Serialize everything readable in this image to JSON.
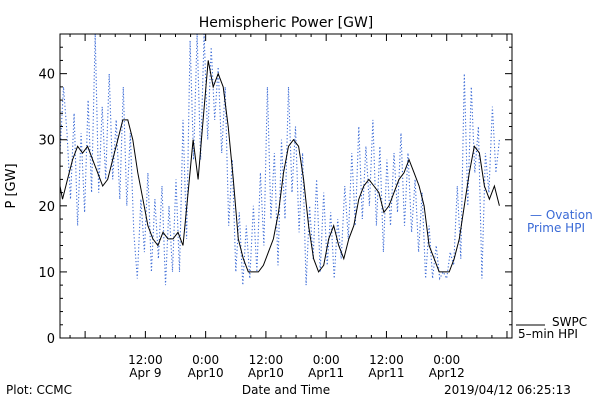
{
  "chart_data": {
    "type": "line",
    "title": "Hemispheric Power [GW]",
    "ylabel": "P [GW]",
    "xlabel": "Date and Time",
    "ylim": [
      0,
      46
    ],
    "yticks": [
      0,
      10,
      20,
      30,
      40
    ],
    "xlim_hours": [
      -5,
      85
    ],
    "xtick_labels": [
      {
        "hour": 12,
        "time": "12:00",
        "date": "Apr 9"
      },
      {
        "hour": 24,
        "time": "0:00",
        "date": "Apr10"
      },
      {
        "hour": 36,
        "time": "12:00",
        "date": "Apr10"
      },
      {
        "hour": 48,
        "time": "0:00",
        "date": "Apr11"
      },
      {
        "hour": 60,
        "time": "12:00",
        "date": "Apr11"
      },
      {
        "hour": 72,
        "time": "0:00",
        "date": "Apr12"
      }
    ],
    "grid": false,
    "series": [
      {
        "name": "SWPC 5-min HPI",
        "legend_label_1": "SWPC",
        "legend_label_2": "5–min HPI",
        "color": "#000000",
        "style": "solid",
        "points": [
          [
            -5,
            23
          ],
          [
            -4.5,
            21
          ],
          [
            -3.5,
            24
          ],
          [
            -2.5,
            27
          ],
          [
            -1.5,
            29
          ],
          [
            -0.5,
            28
          ],
          [
            0.5,
            29
          ],
          [
            1.5,
            27
          ],
          [
            2.5,
            25
          ],
          [
            3.5,
            23
          ],
          [
            4.5,
            24
          ],
          [
            5.5,
            27
          ],
          [
            6.5,
            30
          ],
          [
            7.5,
            33
          ],
          [
            8.5,
            33
          ],
          [
            9.5,
            30
          ],
          [
            10.5,
            25
          ],
          [
            11.5,
            21
          ],
          [
            12.5,
            17
          ],
          [
            13.5,
            15
          ],
          [
            14.5,
            14
          ],
          [
            15.5,
            16
          ],
          [
            16.5,
            15
          ],
          [
            17.5,
            15
          ],
          [
            18.5,
            16
          ],
          [
            19.5,
            14
          ],
          [
            20.5,
            22
          ],
          [
            21.5,
            30
          ],
          [
            22.5,
            24
          ],
          [
            23.5,
            33
          ],
          [
            24.5,
            42
          ],
          [
            25.5,
            38
          ],
          [
            26.5,
            40
          ],
          [
            27.5,
            38
          ],
          [
            28.5,
            32
          ],
          [
            29.5,
            24
          ],
          [
            30.5,
            15
          ],
          [
            31.5,
            12
          ],
          [
            32.5,
            10
          ],
          [
            33.5,
            10
          ],
          [
            34.5,
            10
          ],
          [
            35.5,
            11
          ],
          [
            36.5,
            13
          ],
          [
            37.5,
            15
          ],
          [
            38.5,
            19
          ],
          [
            39.5,
            25
          ],
          [
            40.5,
            29
          ],
          [
            41.5,
            30
          ],
          [
            42.5,
            29
          ],
          [
            43.5,
            24
          ],
          [
            44.5,
            17
          ],
          [
            45.5,
            12
          ],
          [
            46.5,
            10
          ],
          [
            47.5,
            11
          ],
          [
            48.5,
            15
          ],
          [
            49.5,
            17
          ],
          [
            50.5,
            14
          ],
          [
            51.5,
            12
          ],
          [
            52.5,
            15
          ],
          [
            53.5,
            17
          ],
          [
            54.5,
            21
          ],
          [
            55.5,
            23
          ],
          [
            56.5,
            24
          ],
          [
            57.5,
            23
          ],
          [
            58.5,
            22
          ],
          [
            59.5,
            19
          ],
          [
            60.5,
            20
          ],
          [
            61.5,
            22
          ],
          [
            62.5,
            24
          ],
          [
            63.5,
            25
          ],
          [
            64.5,
            27
          ],
          [
            65.5,
            25
          ],
          [
            66.5,
            23
          ],
          [
            67.5,
            20
          ],
          [
            68.5,
            14
          ],
          [
            69.5,
            12
          ],
          [
            70.5,
            10
          ],
          [
            71.5,
            10
          ],
          [
            72.5,
            10
          ],
          [
            73.5,
            12
          ],
          [
            74.5,
            15
          ],
          [
            75.5,
            20
          ],
          [
            76.5,
            25
          ],
          [
            77.5,
            29
          ],
          [
            78.5,
            28
          ],
          [
            79.5,
            23
          ],
          [
            80.5,
            21
          ],
          [
            81.5,
            23
          ],
          [
            82.5,
            20
          ]
        ]
      },
      {
        "name": "Ovation Prime HPI",
        "legend_label_1": "— Ovation",
        "legend_label_2": "Prime HPI",
        "color": "#3a6ad6",
        "style": "dotted",
        "points": [
          [
            -5,
            28
          ],
          [
            -4.3,
            38
          ],
          [
            -3.6,
            31
          ],
          [
            -2.9,
            21
          ],
          [
            -2.2,
            34
          ],
          [
            -1.5,
            17
          ],
          [
            -0.8,
            31
          ],
          [
            -0.1,
            19
          ],
          [
            0.6,
            36
          ],
          [
            1.3,
            22
          ],
          [
            2,
            46
          ],
          [
            2.7,
            22
          ],
          [
            3.4,
            35
          ],
          [
            4.1,
            24
          ],
          [
            4.8,
            40
          ],
          [
            5.5,
            24
          ],
          [
            6.2,
            33
          ],
          [
            6.9,
            21
          ],
          [
            7.6,
            38
          ],
          [
            8.3,
            20
          ],
          [
            9,
            31
          ],
          [
            9.7,
            16
          ],
          [
            10.4,
            9
          ],
          [
            11.1,
            21
          ],
          [
            11.8,
            13
          ],
          [
            12.5,
            25
          ],
          [
            13.2,
            10
          ],
          [
            13.9,
            21
          ],
          [
            14.6,
            12
          ],
          [
            15.3,
            23
          ],
          [
            16,
            8
          ],
          [
            16.7,
            20
          ],
          [
            17.4,
            10
          ],
          [
            18.1,
            24
          ],
          [
            18.8,
            10
          ],
          [
            19.5,
            33
          ],
          [
            20.2,
            15
          ],
          [
            20.9,
            45
          ],
          [
            21.6,
            27
          ],
          [
            22.3,
            46
          ],
          [
            23,
            27
          ],
          [
            23.7,
            46
          ],
          [
            24.4,
            30
          ],
          [
            25.1,
            44
          ],
          [
            25.8,
            33
          ],
          [
            26.5,
            41
          ],
          [
            27.2,
            28
          ],
          [
            27.9,
            38
          ],
          [
            28.6,
            17
          ],
          [
            29.3,
            27
          ],
          [
            30,
            10
          ],
          [
            30.7,
            19
          ],
          [
            31.4,
            8
          ],
          [
            32.1,
            17
          ],
          [
            32.8,
            9
          ],
          [
            33.5,
            20
          ],
          [
            34.2,
            10
          ],
          [
            34.9,
            25
          ],
          [
            35.6,
            14
          ],
          [
            36.3,
            38
          ],
          [
            37,
            18
          ],
          [
            37.7,
            28
          ],
          [
            38.4,
            11
          ],
          [
            39.1,
            30
          ],
          [
            39.8,
            18
          ],
          [
            40.5,
            38
          ],
          [
            41.2,
            22
          ],
          [
            41.9,
            32
          ],
          [
            42.6,
            16
          ],
          [
            43.3,
            28
          ],
          [
            44,
            8
          ],
          [
            44.7,
            20
          ],
          [
            45.4,
            12
          ],
          [
            46.1,
            24
          ],
          [
            46.8,
            10
          ],
          [
            47.5,
            22
          ],
          [
            48.2,
            11
          ],
          [
            48.9,
            19
          ],
          [
            49.6,
            9
          ],
          [
            50.3,
            18
          ],
          [
            51,
            12
          ],
          [
            51.7,
            23
          ],
          [
            52.4,
            15
          ],
          [
            53.1,
            28
          ],
          [
            53.8,
            17
          ],
          [
            54.5,
            32
          ],
          [
            55.2,
            18
          ],
          [
            55.9,
            29
          ],
          [
            56.6,
            20
          ],
          [
            57.3,
            33
          ],
          [
            58,
            17
          ],
          [
            58.7,
            29
          ],
          [
            59.4,
            13
          ],
          [
            60.1,
            27
          ],
          [
            60.8,
            17
          ],
          [
            61.5,
            28
          ],
          [
            62.2,
            19
          ],
          [
            62.9,
            31
          ],
          [
            63.6,
            17
          ],
          [
            64.3,
            28
          ],
          [
            65,
            16
          ],
          [
            65.7,
            24
          ],
          [
            66.4,
            13
          ],
          [
            67.1,
            22
          ],
          [
            67.8,
            9
          ],
          [
            68.5,
            17
          ],
          [
            69.2,
            9
          ],
          [
            69.9,
            14
          ],
          [
            70.6,
            9
          ],
          [
            71.3,
            10
          ],
          [
            72,
            9
          ],
          [
            72.7,
            13
          ],
          [
            73.4,
            11
          ],
          [
            74.1,
            23
          ],
          [
            74.8,
            12
          ],
          [
            75.5,
            40
          ],
          [
            76.2,
            20
          ],
          [
            76.9,
            38
          ],
          [
            77.6,
            25
          ],
          [
            78.3,
            32
          ],
          [
            79,
            9
          ],
          [
            79.7,
            28
          ],
          [
            80.4,
            22
          ],
          [
            81.1,
            35
          ],
          [
            81.8,
            25
          ],
          [
            82.5,
            30
          ]
        ]
      }
    ]
  },
  "footer": {
    "credit": "Plot: CCMC",
    "timestamp": "2019/04/12 06:25:13"
  }
}
